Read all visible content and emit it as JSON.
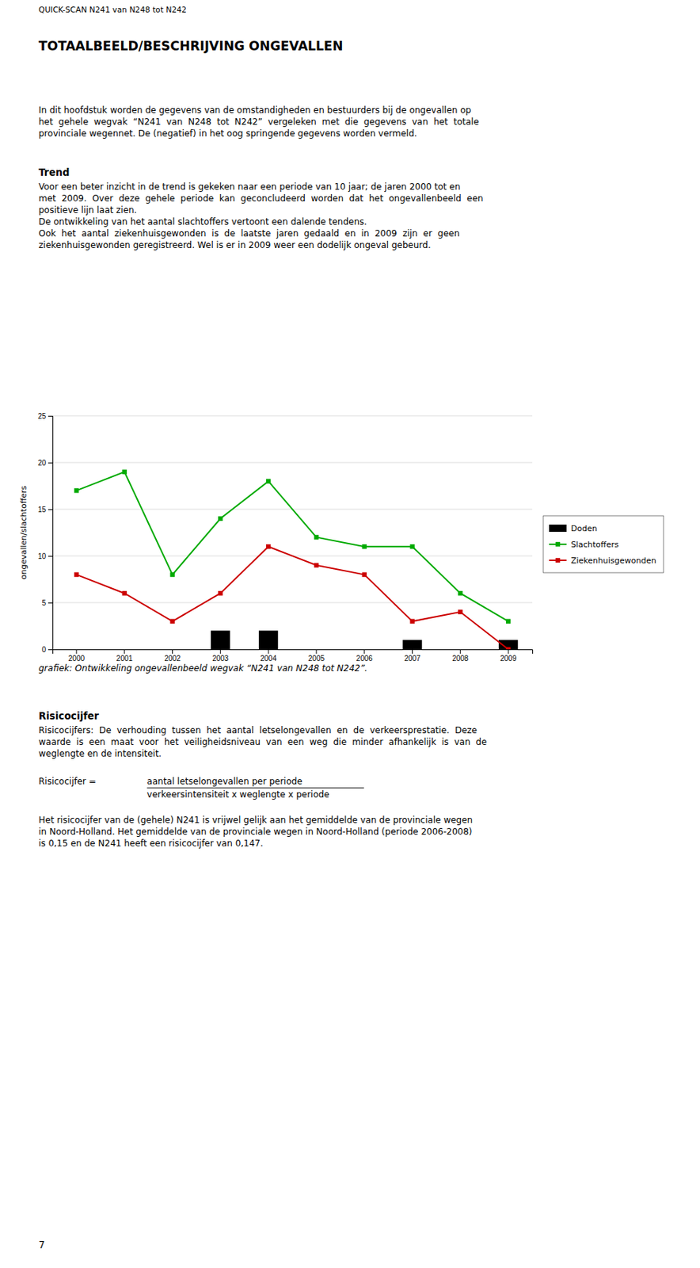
{
  "page": {
    "header": "QUICK-SCAN N241 van N248 tot N242",
    "title": "TOTAALBEELD/BESCHRIJVING ONGEVALLEN",
    "intro": [
      "In dit hoofdstuk worden de gegevens van de omstandigheden en bestuurders bij de ongevallen op",
      "het  gehele  wegvak  “N241  van  N248  tot  N242”  vergeleken  met  die  gegevens  van  het  totale",
      "provinciale wegennet. De (negatief) in het oog springende gegevens worden vermeld."
    ],
    "trend_title": "Trend",
    "trend": [
      "Voor een beter inzicht in de trend is gekeken naar een periode van 10 jaar; de jaren 2000 tot en",
      "met  2009.  Over  deze  gehele  periode  kan  geconcludeerd  worden  dat  het  ongevallenbeeld  een",
      "positieve lijn laat zien.",
      "De ontwikkeling van het aantal slachtoffers vertoont een dalende tendens.",
      "Ook  het  aantal  ziekenhuisgewonden  is  de  laatste  jaren  gedaald  en  in  2009  zijn  er  geen",
      "ziekenhuisgewonden geregistreerd. Wel is er in 2009 weer een dodelijk ongeval gebeurd."
    ],
    "caption": "grafiek: Ontwikkeling ongevallenbeeld wegvak “N241 van N248 tot N242”.",
    "risicocijfer_title": "Risicocijfer",
    "risicocijfer": [
      "Risicocijfers:  De  verhouding  tussen  het  aantal  letselongevallen  en  de  verkeersprestatie.  Deze",
      "waarde  is  een  maat  voor  het  veiligheidsniveau  van  een  weg  die  minder  afhankelijk  is  van  de",
      "weglengte en de intensiteit."
    ],
    "formula_label": "Risicocijfer =",
    "numerator": "aantal letselongevallen per periode",
    "denominator": "verkeersintensiteit x weglengte x periode",
    "conclusion": [
      "Het risicocijfer van de (gehele) N241 is vrijwel gelijk aan het gemiddelde van de provinciale wegen",
      "in Noord-Holland. Het gemiddelde van de provinciale wegen in Noord-Holland (periode 2006-2008)",
      "is 0,15 en de N241 heeft een risicocijfer van 0,147."
    ],
    "footer": "7"
  },
  "chart_data": {
    "type": "line",
    "categories": [
      "2000",
      "2001",
      "2002",
      "2003",
      "2004",
      "2005",
      "2006",
      "2007",
      "2008",
      "2009"
    ],
    "series": [
      {
        "name": "Doden",
        "type": "bar",
        "color": "#000000",
        "values": [
          0,
          0,
          0,
          2,
          2,
          0,
          0,
          1,
          0,
          1
        ]
      },
      {
        "name": "Slachtoffers",
        "type": "line",
        "color": "#00aa00",
        "marker": "square",
        "values": [
          17,
          19,
          8,
          14,
          18,
          12,
          11,
          11,
          6,
          3
        ]
      },
      {
        "name": "Ziekenhuisgewonden",
        "type": "line",
        "color": "#cc0000",
        "marker": "square",
        "values": [
          8,
          6,
          3,
          6,
          11,
          9,
          8,
          3,
          4,
          0
        ]
      }
    ],
    "ylabel": "ongevallen/slachtoffers",
    "ylim": [
      0,
      25
    ],
    "yticks": [
      0,
      5,
      10,
      15,
      20,
      25
    ],
    "grid": true,
    "legend": "right"
  }
}
